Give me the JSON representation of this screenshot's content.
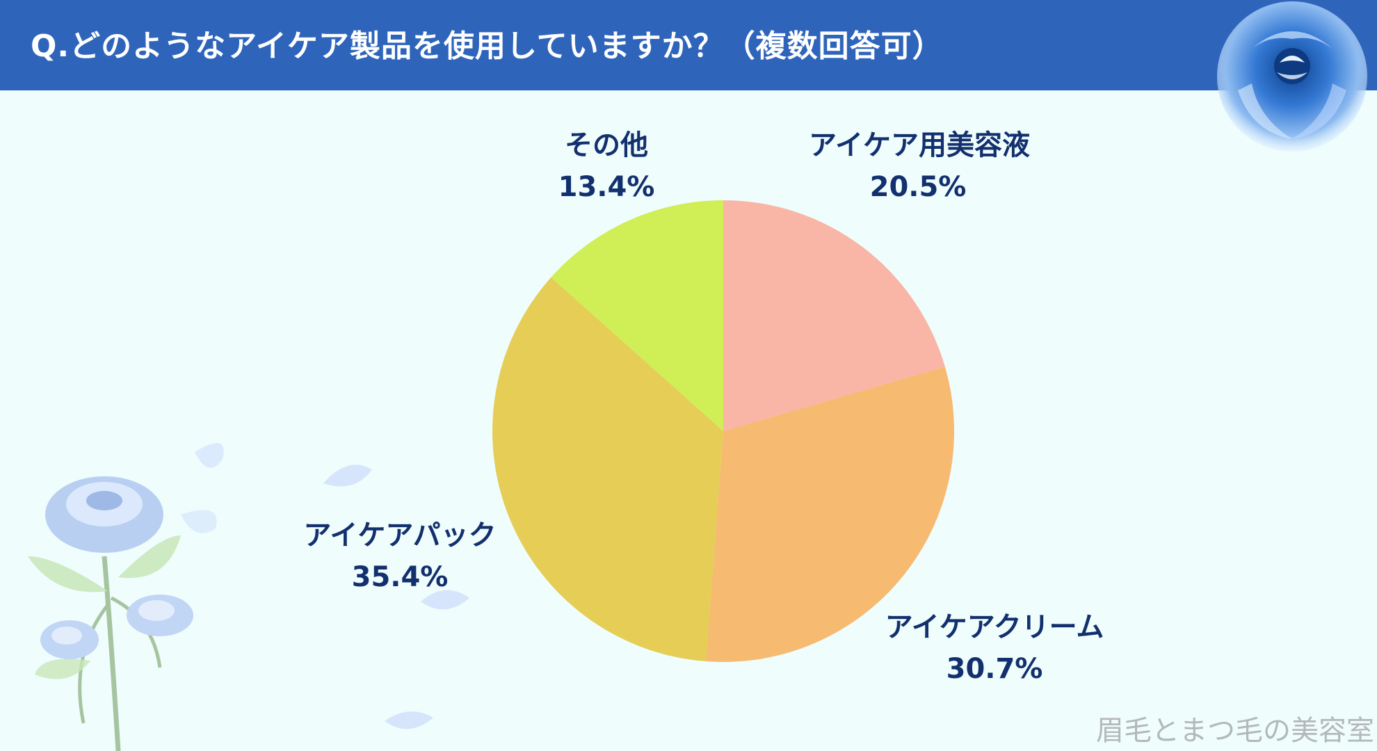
{
  "header": {
    "title": "Q.どのようなアイケア製品を使用していますか？（複数回答可）"
  },
  "colors": {
    "header_bg": "#2e65bb",
    "background": "#effdfd",
    "label_text": "#13306e"
  },
  "chart_data": {
    "type": "pie",
    "title": "",
    "start_angle_deg": 0,
    "direction": "clockwise",
    "slices": [
      {
        "label": "アイケア用美容液",
        "value": 20.5,
        "display": "20.5%",
        "color": "#f9b5a5"
      },
      {
        "label": "アイケアクリーム",
        "value": 30.7,
        "display": "30.7%",
        "color": "#f6ba71"
      },
      {
        "label": "アイケアパック",
        "value": 35.4,
        "display": "35.4%",
        "color": "#e5cd56"
      },
      {
        "label": "その他",
        "value": 13.4,
        "display": "13.4%",
        "color": "#d0ee55"
      }
    ]
  },
  "watermark": "眉毛とまつ毛の美容室"
}
